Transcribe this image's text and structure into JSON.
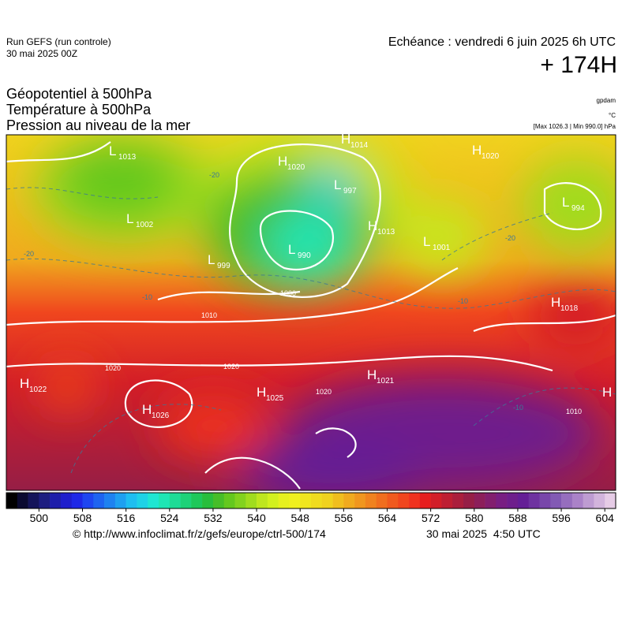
{
  "header": {
    "run_label": "Run GEFS (run controle)",
    "run_date": "30 mai 2025 00Z",
    "echeance": "Echéance : vendredi 6 juin 2025 6h UTC",
    "lead": "+ 174H"
  },
  "legend_lines": [
    "Géopotentiel à 500hPa",
    "Température à 500hPa",
    "Pression au niveau de la mer"
  ],
  "units": [
    "gpdam",
    "°C",
    "[Max 1026.3 | Min 990.0] hPa"
  ],
  "pressure_centers": [
    {
      "kind": "L",
      "value": 1013
    },
    {
      "kind": "L",
      "value": 1002
    },
    {
      "kind": "H",
      "value": 1020
    },
    {
      "kind": "H",
      "value": 1014
    },
    {
      "kind": "L",
      "value": 997
    },
    {
      "kind": "H",
      "value": 1013
    },
    {
      "kind": "L",
      "value": 990
    },
    {
      "kind": "L",
      "value": 999
    },
    {
      "kind": "L",
      "value": 1001
    },
    {
      "kind": "H",
      "value": 1020
    },
    {
      "kind": "L",
      "value": 994
    },
    {
      "kind": "H",
      "value": 1018
    },
    {
      "kind": "H",
      "value": 1022
    },
    {
      "kind": "H",
      "value": 1026
    },
    {
      "kind": "H",
      "value": 1025
    },
    {
      "kind": "H",
      "value": 1021
    },
    {
      "kind": "H"
    }
  ],
  "isobar_labels": [
    1000,
    1010,
    1020,
    1020,
    1020,
    1010
  ],
  "temperature_labels": [
    -20,
    -20,
    -20,
    -10,
    -10,
    -10
  ],
  "colorbar": {
    "lim": [
      494,
      606
    ],
    "ticks": [
      500,
      508,
      516,
      524,
      532,
      540,
      548,
      556,
      564,
      572,
      580,
      588,
      596,
      604
    ],
    "colors": [
      "#000000",
      "#0a0a30",
      "#14145a",
      "#1e1e80",
      "#1e1eaa",
      "#1e1ecc",
      "#1e28e6",
      "#1e46f0",
      "#1e64f0",
      "#1e82f0",
      "#1ea0f0",
      "#1ebef0",
      "#1ed2e6",
      "#1ee6d2",
      "#1ee6b4",
      "#1edc96",
      "#1ed278",
      "#1ec85a",
      "#28be3c",
      "#46be28",
      "#64c81e",
      "#82d21e",
      "#a0dc1e",
      "#bee61e",
      "#d2f01e",
      "#e6f01e",
      "#f0f01e",
      "#f0e61e",
      "#f0dc1e",
      "#f0d21e",
      "#f0be1e",
      "#f0aa1e",
      "#f0961e",
      "#f0821e",
      "#f06e1e",
      "#f05a1e",
      "#f0461e",
      "#f0321e",
      "#e61e1e",
      "#d21e28",
      "#be1e32",
      "#aa1e3c",
      "#961e46",
      "#8c1e5a",
      "#821e6e",
      "#781e82",
      "#6e1e8c",
      "#641e96",
      "#6e32a0",
      "#7846aa",
      "#825ab4",
      "#966ebe",
      "#aa82c8",
      "#be9cd2",
      "#d2b4dc",
      "#e6cce6"
    ]
  },
  "footer": {
    "url": "© http://www.infoclimat.fr/z/gefs/europe/ctrl-500/174",
    "timestamp": "30 mai 2025  4:50 UTC"
  }
}
